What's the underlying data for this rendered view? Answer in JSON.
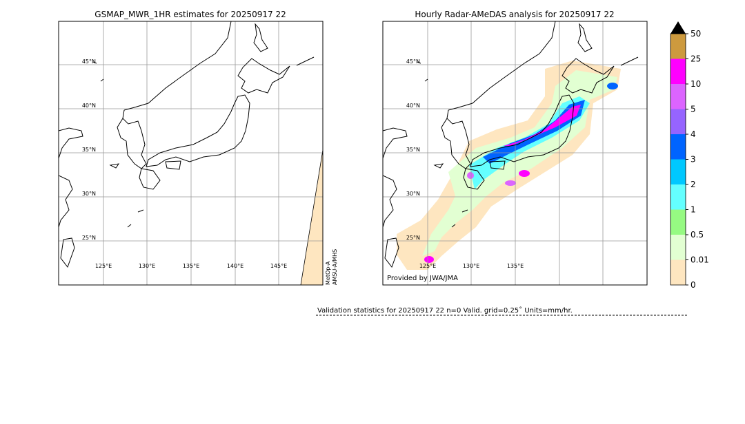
{
  "left_map": {
    "title": "GSMAP_MWR_1HR estimates for 20250917 22",
    "lat_labels": [
      "45°N",
      "40°N",
      "35°N",
      "30°N",
      "25°N"
    ],
    "lon_labels": [
      "125°E",
      "130°E",
      "135°E",
      "140°E",
      "145°E"
    ],
    "satellite_label": [
      "MetOp-A",
      "AMSU-A/MHS"
    ]
  },
  "right_map": {
    "title": "Hourly Radar-AMeDAS analysis for 20250917 22",
    "lat_labels": [
      "45°N",
      "40°N",
      "35°N",
      "30°N",
      "25°N"
    ],
    "lon_labels": [
      "125°E",
      "130°E",
      "135°E"
    ],
    "credit": "Provided by JWA/JMA"
  },
  "colorbar": {
    "labels": [
      "0",
      "0.01",
      "0.5",
      "1",
      "2",
      "3",
      "4",
      "5",
      "10",
      "25",
      "50"
    ],
    "colors": [
      "#fee6c0",
      "#e2ffd2",
      "#96fa82",
      "#64ffff",
      "#00c8ff",
      "#0064ff",
      "#9664ff",
      "#dc64ff",
      "#ff00ff",
      "#cd9a3e"
    ],
    "extend_color": "#000000"
  },
  "validation": "Validation statistics for 20250917 22  n=0 Valid. grid=0.25˚ Units=mm/hr."
}
